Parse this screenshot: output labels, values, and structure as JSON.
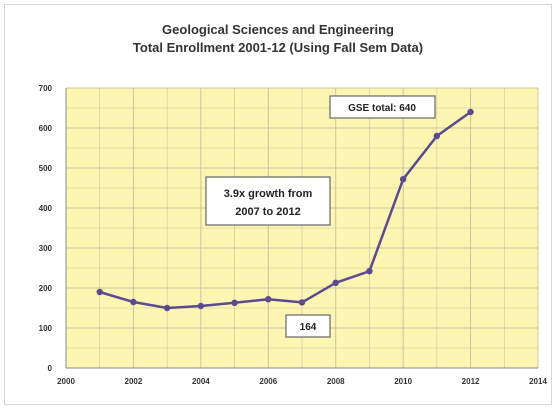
{
  "chart_data": {
    "type": "line",
    "title": "Geological Sciences and Engineering",
    "subtitle": "Total Enrollment 2001-12 (Using Fall Sem Data)",
    "xlabel": "",
    "ylabel": "",
    "xlim": [
      2000,
      2014
    ],
    "ylim": [
      0,
      700
    ],
    "x_ticks": [
      "2000",
      "2002",
      "2004",
      "2006",
      "2008",
      "2010",
      "2012",
      "2014"
    ],
    "y_ticks": [
      "0",
      "100",
      "200",
      "300",
      "400",
      "500",
      "600",
      "700"
    ],
    "grid": true,
    "plot_background": "#fdf6b3",
    "grid_color": "#c9c4a0",
    "line_color": "#5b4a8e",
    "series": [
      {
        "x": [
          2001,
          2002,
          2003,
          2004,
          2005,
          2006,
          2007,
          2008,
          2009,
          2010,
          2011,
          2012
        ],
        "values": [
          190,
          165,
          150,
          155,
          163,
          172,
          164,
          213,
          242,
          472,
          580,
          640
        ]
      }
    ],
    "annotations": [
      {
        "id": "total",
        "line1": "GSE total:  640",
        "line2": ""
      },
      {
        "id": "growth",
        "line1": "3.9x  growth from",
        "line2": "2007 to 2012"
      },
      {
        "id": "low",
        "line1": "164",
        "line2": ""
      }
    ]
  }
}
